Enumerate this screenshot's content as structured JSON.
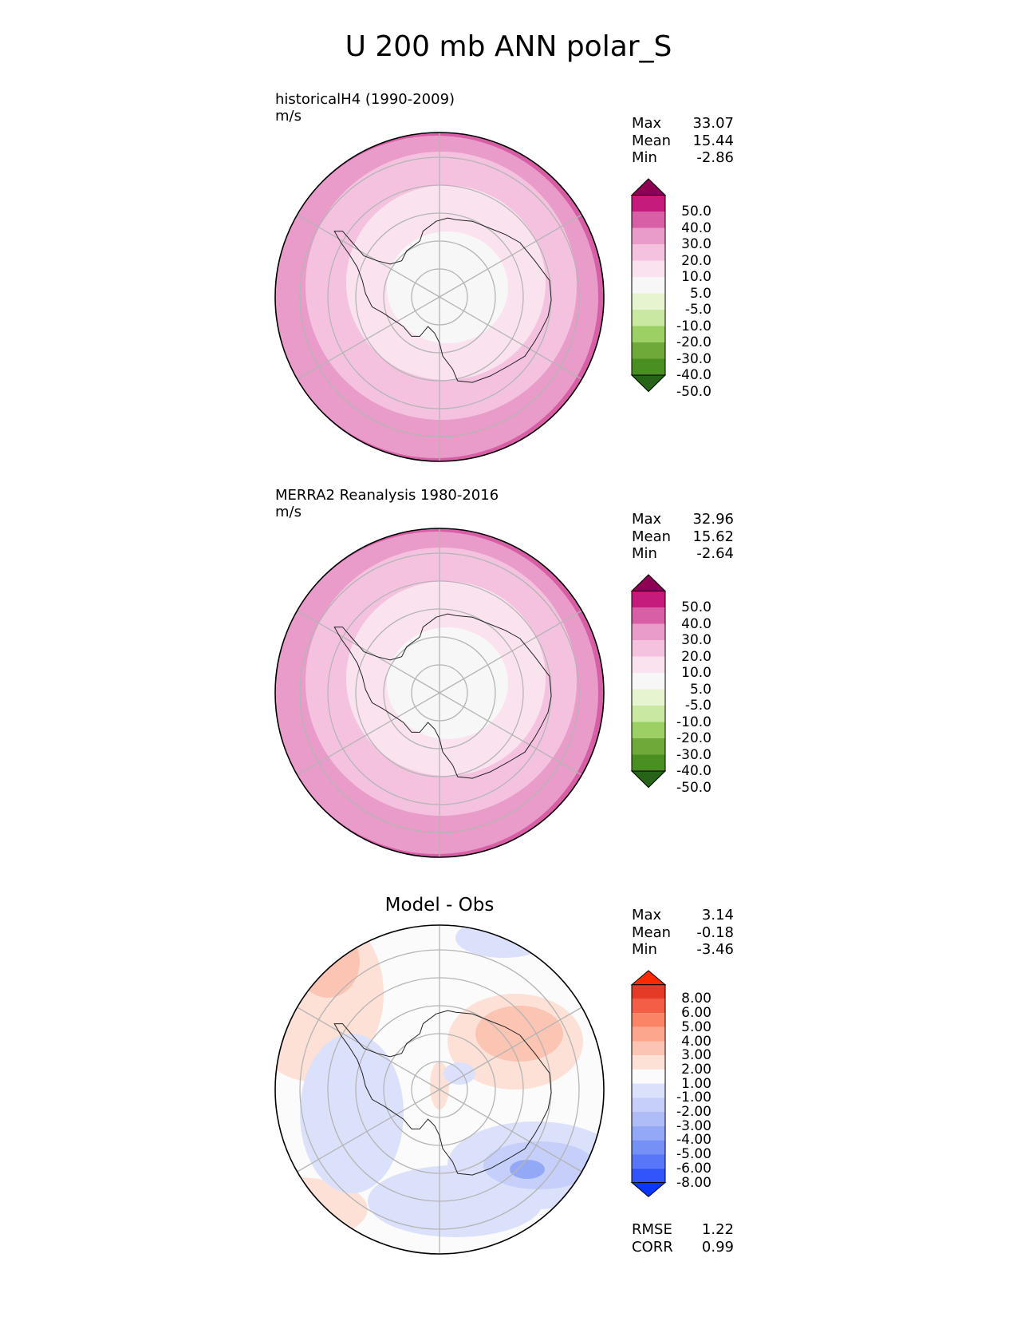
{
  "title": "U 200 mb ANN polar_S",
  "colors": {
    "pink": [
      "#f7f7f7",
      "#fae3ef",
      "#f4c2df",
      "#e99bc9",
      "#d85fa6",
      "#c51b7d",
      "#8e0152"
    ],
    "green": [
      "#f7f7f7",
      "#e6f5d0",
      "#c9e8a2",
      "#9ccf64",
      "#6ea93a",
      "#4a8f22",
      "#276419"
    ],
    "diff_pos": [
      "#fbfbfb",
      "#fde0d6",
      "#fcc4b2",
      "#fca68d",
      "#fb8466",
      "#f35f46",
      "#e43a26",
      "#ff2a00"
    ],
    "diff_neg": [
      "#fbfbfb",
      "#dbe1fb",
      "#c5cffa",
      "#aebdf8",
      "#93a8f7",
      "#7691f6",
      "#5876f8",
      "#3155fb",
      "#0a37ff"
    ],
    "grid": "#b5b5b5",
    "coast": "#222222"
  },
  "panels": [
    {
      "title": "historicalH4 (1990-2009)",
      "units": "m/s",
      "stats": [
        {
          "label": "Max",
          "value": "33.07"
        },
        {
          "label": "Mean",
          "value": "15.44"
        },
        {
          "label": "Min",
          "value": "-2.86"
        }
      ]
    },
    {
      "title": "MERRA2 Reanalysis 1980-2016",
      "units": "m/s",
      "stats": [
        {
          "label": "Max",
          "value": "32.96"
        },
        {
          "label": "Mean",
          "value": "15.62"
        },
        {
          "label": "Min",
          "value": "-2.64"
        }
      ]
    },
    {
      "title": "Model - Obs",
      "stats": [
        {
          "label": "Max",
          "value": "3.14"
        },
        {
          "label": "Mean",
          "value": "-0.18"
        },
        {
          "label": "Min",
          "value": "-3.46"
        }
      ],
      "metrics": [
        {
          "label": "RMSE",
          "value": "1.22"
        },
        {
          "label": "CORR",
          "value": "0.99"
        }
      ]
    }
  ],
  "colorbar_field": [
    "50.0",
    "40.0",
    "30.0",
    "20.0",
    "10.0",
    "5.0",
    "-5.0",
    "-10.0",
    "-20.0",
    "-30.0",
    "-40.0",
    "-50.0"
  ],
  "colorbar_diff": [
    "8.00",
    "6.00",
    "5.00",
    "4.00",
    "3.00",
    "2.00",
    "1.00",
    "-1.00",
    "-2.00",
    "-3.00",
    "-4.00",
    "-5.00",
    "-6.00",
    "-8.00"
  ],
  "chart_data": [
    {
      "type": "heatmap",
      "title": "historicalH4 (1990-2009)",
      "projection": "south polar stereographic",
      "units": "m/s",
      "levels": [
        -50,
        -40,
        -30,
        -20,
        -10,
        -5,
        5,
        10,
        20,
        30,
        40,
        50
      ],
      "max": 33.07,
      "mean": 15.44,
      "min": -2.86
    },
    {
      "type": "heatmap",
      "title": "MERRA2 Reanalysis 1980-2016",
      "projection": "south polar stereographic",
      "units": "m/s",
      "levels": [
        -50,
        -40,
        -30,
        -20,
        -10,
        -5,
        5,
        10,
        20,
        30,
        40,
        50
      ],
      "max": 32.96,
      "mean": 15.62,
      "min": -2.64
    },
    {
      "type": "heatmap",
      "title": "Model - Obs",
      "projection": "south polar stereographic",
      "levels": [
        -8,
        -6,
        -5,
        -4,
        -3,
        -2,
        -1,
        1,
        2,
        3,
        4,
        5,
        6,
        8
      ],
      "max": 3.14,
      "mean": -0.18,
      "min": -3.46,
      "rmse": 1.22,
      "corr": 0.99
    }
  ]
}
